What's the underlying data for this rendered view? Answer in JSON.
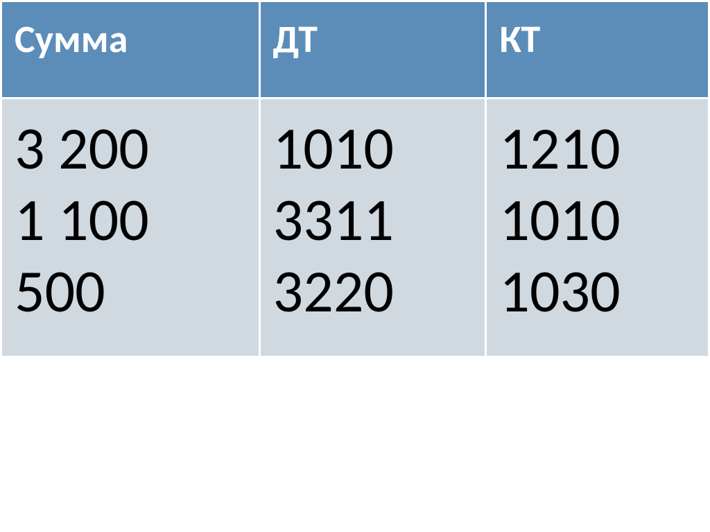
{
  "table": {
    "type": "table",
    "columns": [
      {
        "label": "Сумма",
        "width_pct": 36.5
      },
      {
        "label": "ДТ",
        "width_pct": 32
      },
      {
        "label": "КТ",
        "width_pct": 31.5
      }
    ],
    "rows": [
      {
        "col1": [
          "3 200",
          "1 100",
          "500"
        ],
        "col2": [
          "1010",
          "3311",
          "3220"
        ],
        "col3": [
          "1210",
          "1010",
          "1030"
        ]
      }
    ],
    "header_bg": "#5b8db8",
    "header_fg": "#ffffff",
    "header_fontsize": 56,
    "header_fontweight": "bold",
    "body_bg": "#d1d9e0",
    "body_fg": "#000000",
    "body_fontsize": 86,
    "border_color": "#ffffff",
    "border_width": 3
  }
}
